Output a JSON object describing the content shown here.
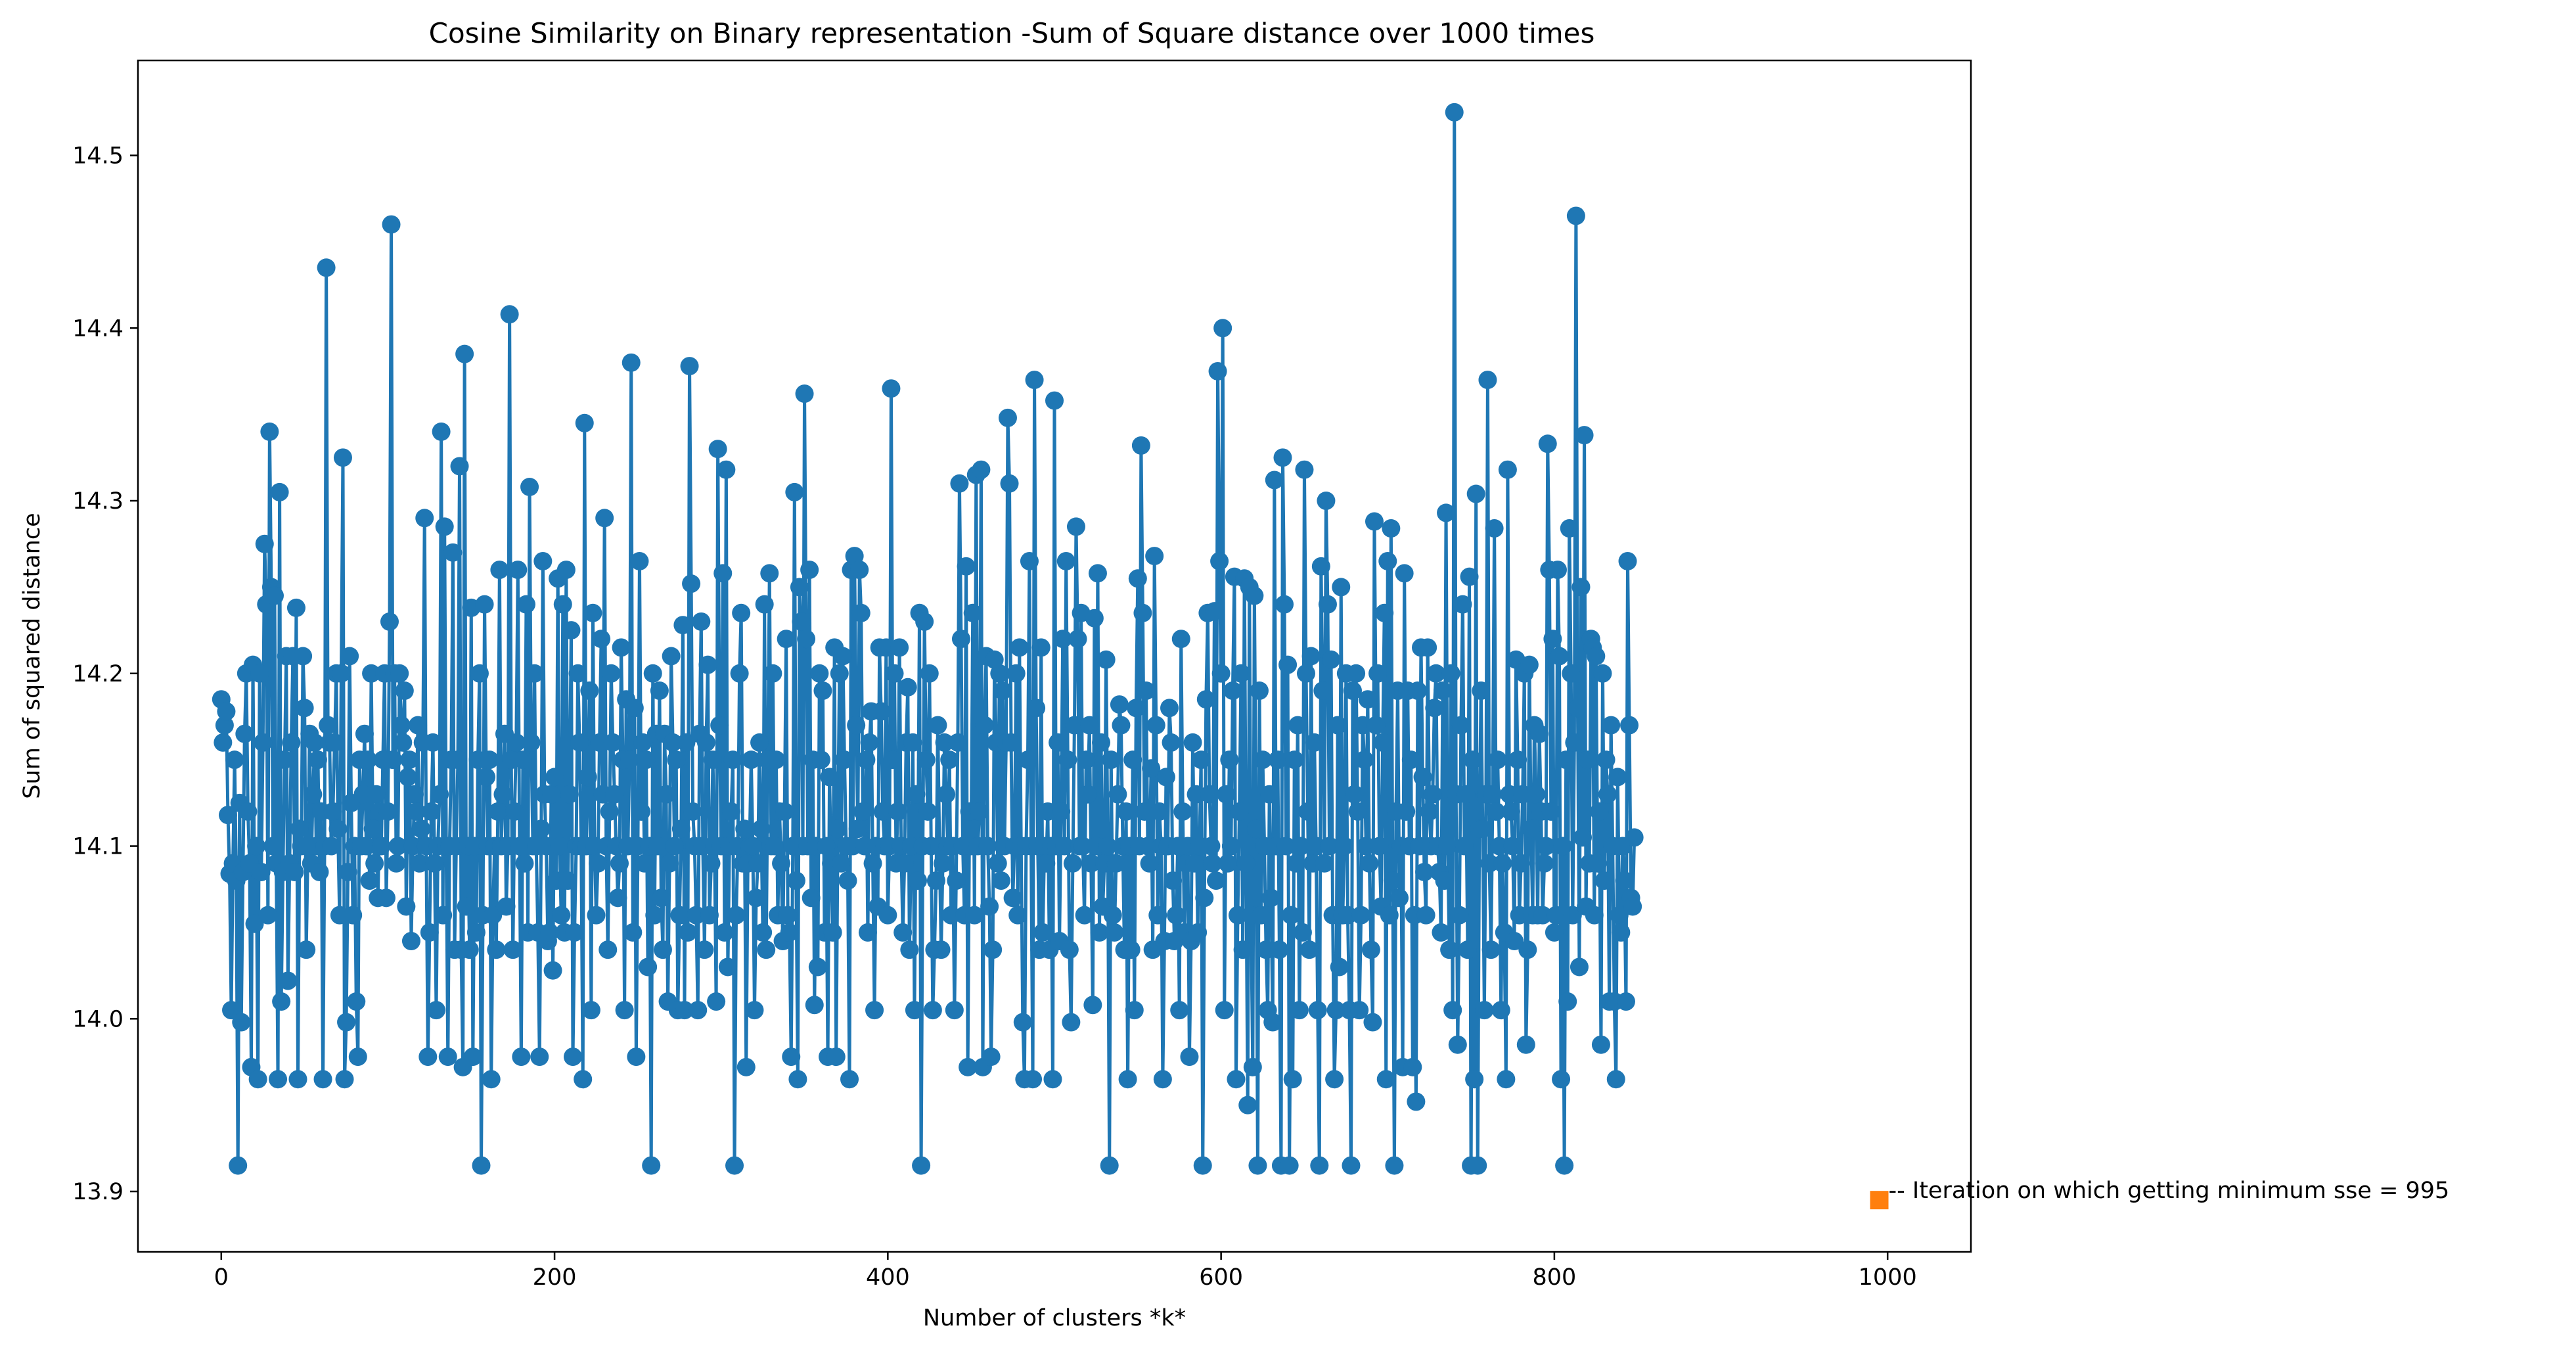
{
  "chart_data": {
    "type": "line",
    "title": "Cosine Similarity on Binary representation -Sum of Square distance over 1000 times",
    "xlabel": "Number of clusters *k*",
    "ylabel": "Sum of squared distance",
    "xlim": [
      -50,
      1050
    ],
    "ylim": [
      13.865,
      14.555
    ],
    "x_ticks": [
      0,
      200,
      400,
      600,
      800,
      1000
    ],
    "y_ticks": [
      13.9,
      14.0,
      14.1,
      14.2,
      14.3,
      14.4,
      14.5
    ],
    "x_tick_labels": [
      "0",
      "200",
      "400",
      "600",
      "800",
      "1000"
    ],
    "y_tick_labels": [
      "13.9",
      "14.0",
      "14.1",
      "14.2",
      "14.3",
      "14.4",
      "14.5"
    ],
    "grid": false,
    "legend": "none",
    "series": [
      {
        "color": "#1f77b4",
        "marker": "circle",
        "x_start": 0,
        "x_step": 1,
        "values": [
          14.185,
          14.16,
          14.17,
          14.178,
          14.118,
          14.084,
          14.005,
          14.09,
          14.15,
          14.08,
          13.915,
          14.125,
          13.998,
          14.085,
          14.165,
          14.2,
          14.12,
          14.09,
          13.972,
          14.205,
          14.055,
          14.1,
          13.965,
          14.2,
          14.085,
          14.16,
          14.275,
          14.24,
          14.06,
          14.34,
          14.25,
          14.1,
          14.245,
          14.09,
          13.965,
          14.305,
          14.01,
          14.085,
          14.15,
          14.21,
          14.022,
          14.09,
          14.16,
          14.21,
          14.085,
          14.238,
          13.965,
          14.11,
          14.1,
          14.21,
          14.18,
          14.04,
          14.1,
          14.165,
          14.09,
          14.13,
          14.16,
          14.1,
          14.15,
          14.085,
          14.12,
          13.965,
          14.1,
          14.435,
          14.17,
          14.16,
          14.1,
          14.12,
          14.16,
          14.2,
          14.11,
          14.06,
          14.2,
          14.325,
          13.965,
          13.998,
          14.085,
          14.21,
          14.125,
          14.06,
          14.1,
          14.01,
          13.978,
          14.15,
          14.1,
          14.13,
          14.165,
          14.1,
          14.15,
          14.08,
          14.2,
          14.11,
          14.09,
          14.13,
          14.07,
          14.12,
          14.1,
          14.15,
          14.2,
          14.07,
          14.12,
          14.23,
          14.46,
          14.15,
          14.2,
          14.09,
          14.1,
          14.2,
          14.17,
          14.16,
          14.19,
          14.065,
          14.14,
          14.15,
          14.045,
          14.1,
          14.13,
          14.12,
          14.17,
          14.09,
          14.11,
          14.16,
          14.29,
          14.1,
          13.978,
          14.05,
          14.12,
          14.16,
          14.09,
          14.005,
          14.1,
          14.13,
          14.34,
          14.06,
          14.285,
          14.1,
          13.978,
          14.1,
          14.15,
          14.27,
          14.04,
          14.1,
          14.15,
          14.32,
          14.04,
          13.972,
          14.385,
          14.065,
          14.1,
          14.04,
          14.238,
          13.978,
          14.1,
          14.05,
          14.15,
          14.2,
          13.915,
          14.06,
          14.24,
          14.14,
          14.1,
          14.15,
          13.965,
          14.06,
          14.1,
          14.04,
          14.12,
          14.26,
          14.1,
          14.13,
          14.165,
          14.065,
          14.1,
          14.408,
          14.15,
          14.04,
          14.12,
          14.16,
          14.26,
          14.1,
          13.978,
          14.15,
          14.09,
          14.24,
          14.05,
          14.308,
          14.16,
          14.1,
          14.2,
          14.1,
          14.05,
          13.978,
          14.11,
          14.265,
          14.13,
          14.1,
          14.045,
          14.05,
          14.13,
          14.028,
          14.14,
          14.08,
          14.255,
          14.1,
          14.06,
          14.24,
          14.05,
          14.26,
          14.08,
          14.13,
          14.225,
          13.978,
          14.05,
          14.1,
          14.2,
          14.16,
          14.1,
          13.965,
          14.345,
          14.1,
          14.14,
          14.19,
          14.005,
          14.235,
          14.1,
          14.06,
          14.09,
          14.16,
          14.22,
          14.13,
          14.29,
          14.1,
          14.04,
          14.12,
          14.2,
          14.16,
          14.13,
          14.1,
          14.07,
          14.09,
          14.215,
          14.15,
          14.005,
          14.185,
          14.1,
          14.15,
          14.38,
          14.05,
          14.18,
          13.978,
          14.1,
          14.265,
          14.12,
          14.16,
          14.09,
          14.15,
          14.03,
          14.1,
          13.915,
          14.2,
          14.06,
          14.165,
          14.1,
          14.19,
          14.07,
          14.04,
          14.165,
          14.13,
          14.01,
          14.09,
          14.21,
          14.16,
          14.1,
          14.15,
          14.005,
          14.06,
          14.11,
          14.228,
          14.005,
          14.16,
          14.05,
          14.378,
          14.252,
          14.12,
          14.1,
          14.06,
          14.005,
          14.165,
          14.23,
          14.1,
          14.04,
          14.16,
          14.205,
          14.06,
          14.09,
          14.15,
          14.1,
          14.01,
          14.33,
          14.17,
          14.1,
          14.258,
          14.05,
          14.318,
          14.03,
          14.1,
          14.12,
          14.15,
          13.915,
          14.06,
          14.1,
          14.2,
          14.235,
          14.09,
          14.11,
          13.972,
          14.09,
          14.1,
          14.15,
          14.1,
          14.005,
          14.07,
          14.09,
          14.16,
          14.11,
          14.05,
          14.24,
          14.04,
          14.15,
          14.258,
          14.1,
          14.2,
          14.1,
          14.15,
          14.06,
          14.12,
          14.09,
          14.045,
          14.12,
          14.22,
          14.06,
          14.05,
          13.978,
          14.1,
          14.305,
          14.08,
          13.965,
          14.25,
          14.23,
          14.1,
          14.362,
          14.22,
          14.1,
          14.26,
          14.07,
          14.15,
          14.008,
          14.1,
          14.03,
          14.2,
          14.15,
          14.19,
          14.05,
          14.1,
          13.978,
          14.14,
          14.09,
          14.05,
          14.215,
          13.978,
          14.11,
          14.2,
          14.09,
          14.21,
          14.15,
          14.1,
          14.08,
          13.965,
          14.26,
          14.1,
          14.268,
          14.17,
          14.11,
          14.26,
          14.235,
          14.12,
          14.1,
          14.15,
          14.05,
          14.16,
          14.178,
          14.09,
          14.005,
          14.1,
          14.065,
          14.215,
          14.178,
          14.12,
          14.1,
          14.215,
          14.06,
          14.1,
          14.365,
          14.15,
          14.2,
          14.09,
          14.12,
          14.215,
          14.1,
          14.05,
          14.09,
          14.16,
          14.192,
          14.04,
          14.1,
          14.16,
          14.005,
          14.13,
          14.08,
          14.235,
          13.915,
          14.1,
          14.23,
          14.15,
          14.12,
          14.2,
          14.1,
          14.005,
          14.04,
          14.08,
          14.17,
          14.1,
          14.04,
          14.09,
          14.16,
          14.13,
          14.1,
          14.15,
          14.06,
          14.1,
          14.005,
          14.08,
          14.16,
          14.31,
          14.22,
          14.1,
          14.06,
          14.262,
          13.972,
          14.12,
          14.1,
          14.235,
          14.06,
          14.315,
          14.1,
          14.12,
          14.318,
          13.972,
          14.17,
          14.21,
          14.1,
          14.065,
          13.978,
          14.04,
          14.208,
          14.16,
          14.09,
          14.2,
          14.08,
          14.19,
          14.1,
          14.16,
          14.348,
          14.31,
          14.16,
          14.07,
          14.1,
          14.2,
          14.06,
          14.215,
          14.1,
          13.998,
          13.965,
          14.1,
          14.15,
          14.265,
          14.1,
          13.965,
          14.37,
          14.18,
          14.1,
          14.04,
          14.215,
          14.05,
          14.1,
          14.09,
          14.12,
          14.04,
          14.1,
          13.965,
          14.358,
          14.1,
          14.16,
          14.045,
          14.12,
          14.22,
          14.1,
          14.265,
          14.15,
          14.04,
          13.998,
          14.09,
          14.17,
          14.285,
          14.22,
          14.1,
          14.235,
          14.1,
          14.06,
          14.15,
          14.13,
          14.17,
          14.09,
          14.008,
          14.232,
          14.1,
          14.258,
          14.05,
          14.16,
          14.065,
          14.09,
          14.208,
          14.1,
          13.915,
          14.15,
          14.06,
          14.05,
          14.09,
          14.13,
          14.182,
          14.17,
          14.1,
          14.04,
          14.12,
          13.965,
          14.1,
          14.04,
          14.15,
          14.005,
          14.18,
          14.255,
          14.1,
          14.332,
          14.235,
          14.12,
          14.19,
          14.1,
          14.09,
          14.145,
          14.04,
          14.268,
          14.17,
          14.06,
          14.12,
          14.1,
          13.965,
          14.045,
          14.14,
          14.1,
          14.18,
          14.16,
          14.08,
          14.045,
          14.06,
          14.1,
          14.005,
          14.22,
          14.12,
          14.05,
          14.09,
          14.1,
          13.978,
          14.045,
          14.16,
          14.09,
          14.13,
          14.05,
          14.1,
          14.15,
          13.915,
          14.07,
          14.185,
          14.235,
          14.13,
          14.1,
          14.09,
          14.236,
          14.08,
          14.375,
          14.265,
          14.2,
          14.4,
          14.005,
          14.13,
          14.09,
          14.15,
          14.1,
          14.19,
          14.256,
          13.965,
          14.06,
          14.12,
          14.2,
          14.04,
          14.255,
          14.09,
          13.95,
          14.25,
          14.06,
          13.972,
          14.245,
          14.11,
          13.915,
          14.19,
          14.06,
          14.15,
          14.1,
          14.04,
          14.005,
          14.13,
          14.07,
          13.998,
          14.312,
          14.1,
          14.15,
          14.04,
          13.915,
          14.325,
          14.24,
          14.1,
          14.205,
          13.915,
          14.06,
          13.965,
          14.15,
          14.09,
          14.17,
          14.005,
          14.1,
          14.05,
          14.318,
          14.2,
          14.12,
          14.04,
          14.21,
          14.09,
          14.16,
          14.1,
          14.005,
          13.915,
          14.262,
          14.19,
          14.09,
          14.3,
          14.24,
          14.1,
          14.208,
          14.06,
          13.965,
          14.005,
          14.17,
          14.03,
          14.25,
          14.06,
          14.1,
          14.2,
          14.06,
          14.005,
          13.915,
          14.19,
          14.13,
          14.2,
          14.12,
          14.005,
          14.06,
          14.17,
          14.15,
          14.1,
          14.185,
          14.09,
          14.04,
          13.998,
          14.288,
          14.17,
          14.2,
          14.1,
          14.065,
          14.16,
          14.235,
          13.965,
          14.265,
          14.06,
          14.284,
          14.08,
          13.915,
          14.12,
          14.19,
          14.07,
          14.1,
          13.972,
          14.258,
          14.12,
          14.19,
          14.1,
          14.15,
          13.972,
          14.06,
          13.952,
          14.19,
          14.1,
          14.215,
          14.14,
          14.085,
          14.06,
          14.215,
          14.12,
          14.1,
          14.13,
          14.18,
          14.2,
          14.1,
          14.085,
          14.05,
          14.19,
          14.08,
          14.293,
          14.1,
          14.04,
          14.2,
          14.005,
          14.525,
          14.13,
          13.985,
          14.06,
          14.17,
          14.24,
          14.1,
          14.13,
          14.04,
          14.256,
          13.915,
          14.15,
          13.965,
          14.304,
          13.915,
          14.11,
          14.19,
          14.11,
          14.005,
          14.13,
          14.37,
          14.09,
          14.04,
          14.13,
          14.284,
          14.12,
          14.15,
          14.1,
          14.005,
          14.09,
          14.05,
          13.965,
          14.318,
          14.13,
          14.12,
          14.1,
          14.045,
          14.208,
          14.15,
          14.06,
          14.09,
          14.13,
          14.2,
          13.985,
          14.04,
          14.205,
          14.11,
          14.06,
          14.17,
          14.13,
          14.06,
          14.165,
          14.12,
          14.06,
          14.09,
          14.1,
          14.333,
          14.26,
          14.12,
          14.22,
          14.05,
          14.06,
          14.26,
          14.21,
          13.965,
          14.1,
          13.915,
          14.15,
          14.01,
          14.284,
          14.2,
          14.06,
          14.16,
          14.465,
          14.18,
          14.03,
          14.25,
          14.105,
          14.338,
          14.065,
          14.15,
          14.09,
          14.22,
          14.215,
          14.06,
          14.21,
          14.09,
          14.12,
          13.985,
          14.2,
          14.08,
          14.15,
          14.13,
          14.01,
          14.17,
          14.1,
          14.01,
          13.965,
          14.14,
          14.06,
          14.05,
          14.1,
          14.08,
          14.01,
          14.265,
          14.17,
          14.07,
          14.065,
          14.105
        ]
      }
    ],
    "annotation": {
      "x": 995,
      "y": 13.895,
      "marker": "square",
      "color": "#ff7f0e",
      "text": "-- Iteration on which getting minimum sse = 995"
    }
  }
}
